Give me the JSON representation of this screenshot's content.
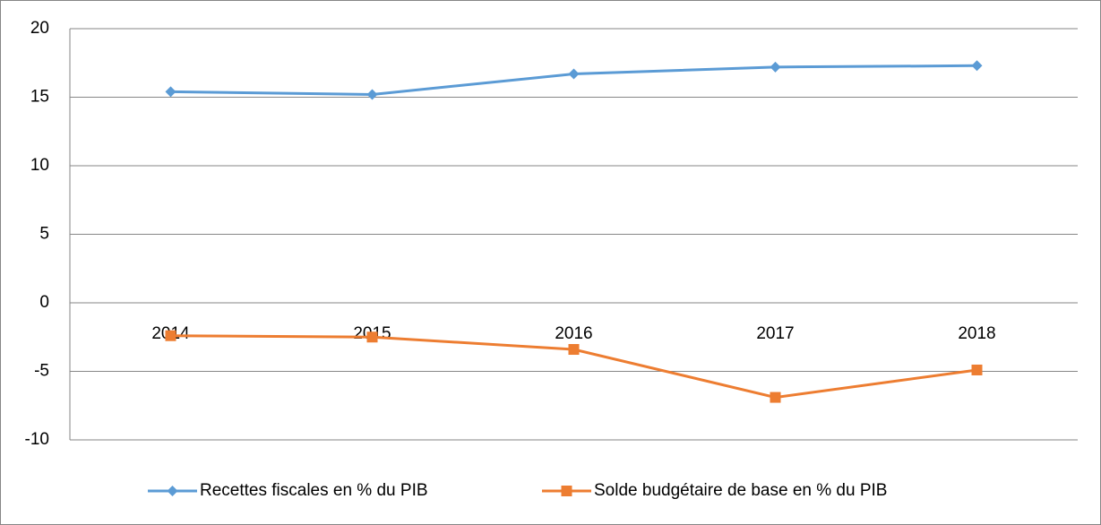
{
  "chart_data": {
    "type": "line",
    "categories": [
      "2014",
      "2015",
      "2016",
      "2017",
      "2018"
    ],
    "series": [
      {
        "name": "Recettes fiscales en % du PIB",
        "color": "#5b9bd5",
        "marker": "diamond",
        "values": [
          15.4,
          15.2,
          16.7,
          17.2,
          17.3
        ]
      },
      {
        "name": "Solde budgétaire de base en % du PIB",
        "color": "#ed7d31",
        "marker": "square",
        "values": [
          -2.4,
          -2.5,
          -3.4,
          -6.9,
          -4.9
        ]
      }
    ],
    "ylim": [
      -10,
      20
    ],
    "yticks": [
      -10,
      -5,
      0,
      5,
      10,
      15,
      20
    ],
    "grid": true,
    "legend": "bottom"
  }
}
